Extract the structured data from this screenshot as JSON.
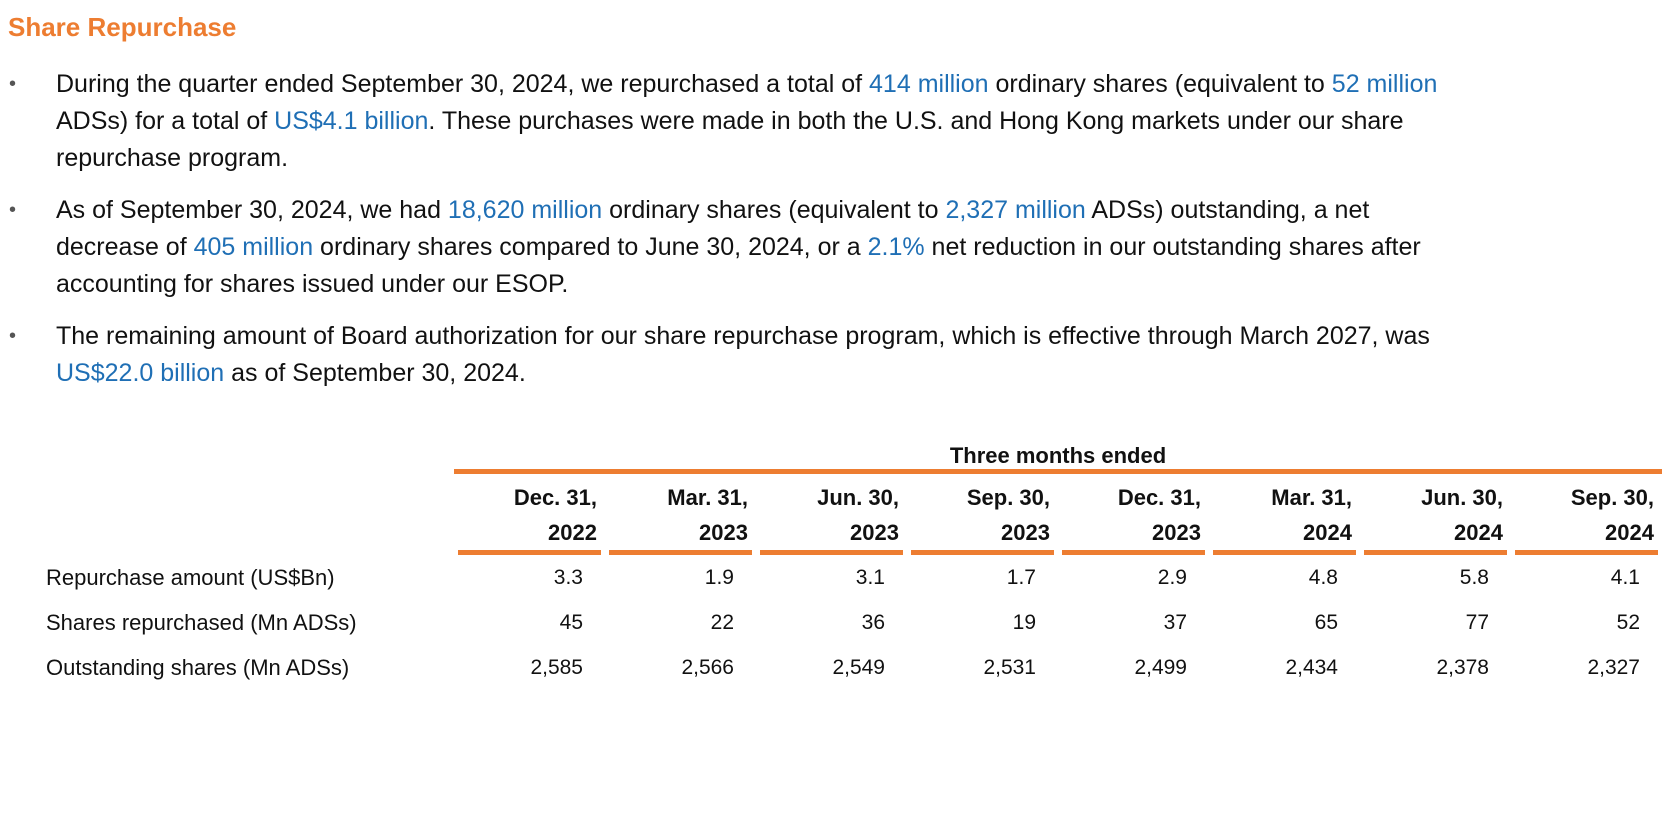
{
  "page": {
    "title": "Share Repurchase"
  },
  "colors": {
    "title": "#ED7D31",
    "highlight": "#1F6FB5",
    "rule": "#ED7D31"
  },
  "bullets": [
    {
      "segments": [
        {
          "text": "During the quarter ended September 30, 2024, we repurchased a total of ",
          "hl": false
        },
        {
          "text": "414 million",
          "hl": true
        },
        {
          "text": " ordinary shares (equivalent to ",
          "hl": false
        },
        {
          "text": "52 million",
          "hl": true
        },
        {
          "text": "\nADSs) for a total of ",
          "hl": false
        },
        {
          "text": "US$4.1 billion",
          "hl": true
        },
        {
          "text": ". These purchases were made in both the U.S. and Hong Kong markets under our share\nrepurchase program.",
          "hl": false
        }
      ]
    },
    {
      "segments": [
        {
          "text": "As of September 30, 2024, we had ",
          "hl": false
        },
        {
          "text": "18,620 million",
          "hl": true
        },
        {
          "text": " ordinary shares (equivalent to ",
          "hl": false
        },
        {
          "text": "2,327 million",
          "hl": true
        },
        {
          "text": " ADSs) outstanding, a net\ndecrease of ",
          "hl": false
        },
        {
          "text": "405 million",
          "hl": true
        },
        {
          "text": " ordinary shares compared to June 30, 2024, or a ",
          "hl": false
        },
        {
          "text": "2.1%",
          "hl": true
        },
        {
          "text": " net reduction in our outstanding shares after\naccounting for shares issued under our ESOP.",
          "hl": false
        }
      ]
    },
    {
      "segments": [
        {
          "text": "The remaining amount of Board authorization for our share repurchase program, which is effective through March 2027, was\n",
          "hl": false
        },
        {
          "text": "US$22.0 billion",
          "hl": true
        },
        {
          "text": " as of September 30, 2024.",
          "hl": false
        }
      ]
    }
  ],
  "table": {
    "group_header": "Three months ended",
    "columns": [
      {
        "line1": "Dec. 31,",
        "line2": "2022"
      },
      {
        "line1": "Mar. 31,",
        "line2": "2023"
      },
      {
        "line1": "Jun. 30,",
        "line2": "2023"
      },
      {
        "line1": "Sep. 30,",
        "line2": "2023"
      },
      {
        "line1": "Dec. 31,",
        "line2": "2023"
      },
      {
        "line1": "Mar. 31,",
        "line2": "2024"
      },
      {
        "line1": "Jun. 30,",
        "line2": "2024"
      },
      {
        "line1": "Sep. 30,",
        "line2": "2024"
      }
    ],
    "rows": [
      {
        "label": "Repurchase amount (US$Bn)",
        "values": [
          "3.3",
          "1.9",
          "3.1",
          "1.7",
          "2.9",
          "4.8",
          "5.8",
          "4.1"
        ]
      },
      {
        "label": "Shares repurchased (Mn ADSs)",
        "values": [
          "45",
          "22",
          "36",
          "19",
          "37",
          "65",
          "77",
          "52"
        ]
      },
      {
        "label": "Outstanding shares (Mn ADSs)",
        "values": [
          "2,585",
          "2,566",
          "2,549",
          "2,531",
          "2,499",
          "2,434",
          "2,378",
          "2,327"
        ]
      }
    ]
  }
}
